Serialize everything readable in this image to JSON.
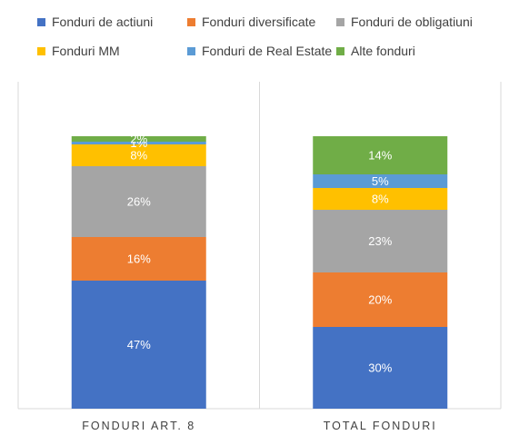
{
  "chart_data": {
    "type": "bar",
    "stacked": true,
    "percent": true,
    "categories": [
      "FONDURI ART. 8",
      "TOTAL FONDURI"
    ],
    "series": [
      {
        "name": "Fonduri de actiuni",
        "color": "#4472C4",
        "values": [
          47,
          30
        ],
        "labels": [
          "47%",
          "30%"
        ]
      },
      {
        "name": "Fonduri diversificate",
        "color": "#ED7D31",
        "values": [
          16,
          20
        ],
        "labels": [
          "16%",
          "20%"
        ]
      },
      {
        "name": "Fonduri de obligatiuni",
        "color": "#A5A5A5",
        "values": [
          26,
          23
        ],
        "labels": [
          "26%",
          "23%"
        ]
      },
      {
        "name": "Fonduri MM",
        "color": "#FFC000",
        "values": [
          8,
          8
        ],
        "labels": [
          "8%",
          "8%"
        ]
      },
      {
        "name": "Fonduri de Real Estate",
        "color": "#5B9BD5",
        "values": [
          1,
          5
        ],
        "labels": [
          "1%",
          "5%"
        ]
      },
      {
        "name": "Alte fonduri",
        "color": "#70AD47",
        "values": [
          2,
          14
        ],
        "labels": [
          "2%",
          "14%"
        ]
      }
    ],
    "ylim": [
      0,
      100
    ],
    "legend_position": "top",
    "grid": false
  }
}
